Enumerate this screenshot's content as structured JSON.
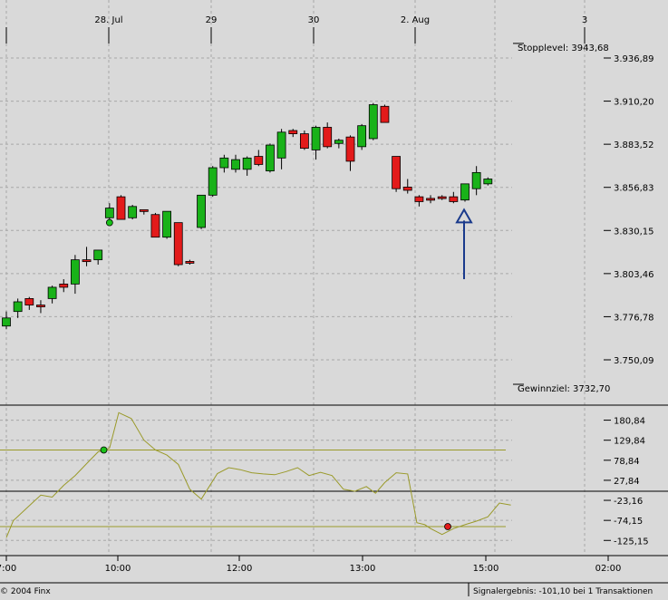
{
  "chart_data": [
    {
      "type": "candlestick",
      "top_axis_labels": [
        "28. Jul",
        "29",
        "30",
        "2. Aug",
        "3"
      ],
      "y_ticks": [
        "3.936,89",
        "3.910,20",
        "3.883,52",
        "3.856,83",
        "3.830,15",
        "3.803,46",
        "3.776,78",
        "3.750,09"
      ],
      "y_tick_values": [
        3936.89,
        3910.2,
        3883.52,
        3856.83,
        3830.15,
        3803.46,
        3776.78,
        3750.09
      ],
      "levels": [
        {
          "label": "Stopplevel: 3943,68",
          "value": 3943.68
        },
        {
          "label": "Gewinnziel: 3732,70",
          "value": 3732.7
        }
      ],
      "candles": [
        {
          "o": 3776,
          "h": 3780,
          "l": 3769,
          "c": 3771,
          "color": "green"
        },
        {
          "o": 3780,
          "h": 3788,
          "l": 3776,
          "c": 3786,
          "color": "green"
        },
        {
          "o": 3784,
          "h": 3789,
          "l": 3781,
          "c": 3788,
          "color": "red"
        },
        {
          "o": 3784,
          "h": 3787,
          "l": 3779,
          "c": 3783,
          "color": "red"
        },
        {
          "o": 3788,
          "h": 3796,
          "l": 3785,
          "c": 3795,
          "color": "green"
        },
        {
          "o": 3795,
          "h": 3800,
          "l": 3792,
          "c": 3797,
          "color": "red"
        },
        {
          "o": 3797,
          "h": 3815,
          "l": 3791,
          "c": 3812,
          "color": "green"
        },
        {
          "o": 3812,
          "h": 3820,
          "l": 3808,
          "c": 3811,
          "color": "red"
        },
        {
          "o": 3812,
          "h": 3818,
          "l": 3809,
          "c": 3818,
          "color": "green"
        },
        {
          "o": 3838,
          "h": 3847,
          "l": 3836,
          "c": 3844,
          "color": "green"
        },
        {
          "o": 3851,
          "h": 3852,
          "l": 3837,
          "c": 3837,
          "color": "red"
        },
        {
          "o": 3838,
          "h": 3846,
          "l": 3837,
          "c": 3845,
          "color": "green"
        },
        {
          "o": 3843,
          "h": 3843,
          "l": 3840,
          "c": 3842,
          "color": "red"
        },
        {
          "o": 3840,
          "h": 3841,
          "l": 3826,
          "c": 3826,
          "color": "red"
        },
        {
          "o": 3826,
          "h": 3842,
          "l": 3825,
          "c": 3842,
          "color": "green"
        },
        {
          "o": 3835,
          "h": 3835,
          "l": 3808,
          "c": 3809,
          "color": "red"
        },
        {
          "o": 3811,
          "h": 3812,
          "l": 3809,
          "c": 3810,
          "color": "red"
        },
        {
          "o": 3832,
          "h": 3852,
          "l": 3831,
          "c": 3852,
          "color": "green"
        },
        {
          "o": 3852,
          "h": 3870,
          "l": 3851,
          "c": 3869,
          "color": "green"
        },
        {
          "o": 3869,
          "h": 3877,
          "l": 3866,
          "c": 3875,
          "color": "green"
        },
        {
          "o": 3868,
          "h": 3877,
          "l": 3866,
          "c": 3874,
          "color": "green"
        },
        {
          "o": 3868,
          "h": 3876,
          "l": 3864,
          "c": 3875,
          "color": "green"
        },
        {
          "o": 3876,
          "h": 3880,
          "l": 3870,
          "c": 3871,
          "color": "red"
        },
        {
          "o": 3867,
          "h": 3884,
          "l": 3866,
          "c": 3883,
          "color": "green"
        },
        {
          "o": 3875,
          "h": 3893,
          "l": 3868,
          "c": 3891,
          "color": "green"
        },
        {
          "o": 3892,
          "h": 3893,
          "l": 3888,
          "c": 3890,
          "color": "red"
        },
        {
          "o": 3890,
          "h": 3892,
          "l": 3880,
          "c": 3881,
          "color": "red"
        },
        {
          "o": 3880,
          "h": 3895,
          "l": 3874,
          "c": 3894,
          "color": "green"
        },
        {
          "o": 3894,
          "h": 3897,
          "l": 3881,
          "c": 3882,
          "color": "red"
        },
        {
          "o": 3884,
          "h": 3887,
          "l": 3881,
          "c": 3886,
          "color": "green"
        },
        {
          "o": 3888,
          "h": 3889,
          "l": 3867,
          "c": 3873,
          "color": "red"
        },
        {
          "o": 3882,
          "h": 3896,
          "l": 3880,
          "c": 3895,
          "color": "green"
        },
        {
          "o": 3887,
          "h": 3909,
          "l": 3886,
          "c": 3908,
          "color": "green"
        },
        {
          "o": 3907,
          "h": 3908,
          "l": 3897,
          "c": 3897,
          "color": "red"
        },
        {
          "o": 3876,
          "h": 3876,
          "l": 3854,
          "c": 3856,
          "color": "red"
        },
        {
          "o": 3857,
          "h": 3862,
          "l": 3853,
          "c": 3855,
          "color": "red"
        },
        {
          "o": 3851,
          "h": 3852,
          "l": 3845,
          "c": 3848,
          "color": "red"
        },
        {
          "o": 3850,
          "h": 3852,
          "l": 3847,
          "c": 3850,
          "color": "red"
        },
        {
          "o": 3851,
          "h": 3852,
          "l": 3849,
          "c": 3850,
          "color": "red"
        },
        {
          "o": 3851,
          "h": 3854,
          "l": 3847,
          "c": 3848,
          "color": "red"
        },
        {
          "o": 3849,
          "h": 3859,
          "l": 3848,
          "c": 3859,
          "color": "green"
        },
        {
          "o": 3856,
          "h": 3870,
          "l": 3852,
          "c": 3866,
          "color": "green"
        },
        {
          "o": 3859,
          "h": 3863,
          "l": 3858,
          "c": 3862,
          "color": "green"
        }
      ],
      "entry_marker": {
        "candle": 9,
        "value": 3835,
        "color": "green"
      },
      "signal_arrow": {
        "candle": 40,
        "from": 3800,
        "to": 3843,
        "direction": "up"
      }
    },
    {
      "type": "line",
      "y_ticks": [
        "180,84",
        "129,84",
        "78,84",
        "27,84",
        "-23,16",
        "-74,15",
        "-125,15"
      ],
      "y_tick_values": [
        180.84,
        129.84,
        78.84,
        27.84,
        -23.16,
        -74.15,
        -125.15
      ],
      "x_ticks": [
        "7:00",
        "10:00",
        "12:00",
        "13:00",
        "15:00",
        "02:00"
      ],
      "reference_lines": [
        105,
        -90
      ],
      "zero_line": 0,
      "series": [
        {
          "x": [
            0,
            0.6,
            2,
            3,
            4,
            5,
            6,
            7,
            8,
            9,
            9.8,
            10.9,
            12,
            13,
            14,
            15,
            16,
            17,
            18.4,
            19.4,
            20.4,
            21.4,
            22.4,
            23.4,
            24.4,
            25.4,
            26.4,
            27.4,
            28.4,
            29.4,
            30.4,
            31.4,
            32.2,
            33,
            34,
            35,
            35.8,
            36.5,
            37,
            38,
            39,
            40,
            41,
            42,
            43,
            44
          ],
          "values": [
            -118,
            -75,
            -37,
            -10,
            -15,
            15,
            40,
            70,
            100,
            110,
            200,
            185,
            130,
            105,
            92,
            68,
            5,
            -20,
            45,
            60,
            55,
            47,
            44,
            42,
            50,
            60,
            40,
            48,
            40,
            5,
            0,
            12,
            -5,
            22,
            47,
            44,
            -80,
            -85,
            -95,
            -110,
            -95,
            -85,
            -76,
            -65,
            -30,
            -35
          ]
        }
      ],
      "markers": [
        {
          "x": 8.5,
          "value": 105,
          "color": "green"
        },
        {
          "x": 38.5,
          "value": -90,
          "color": "red"
        }
      ]
    }
  ],
  "footer": {
    "copyright": "© 2004 Finx",
    "signal": "Signalergebnis: -101,10 bei 1 Transaktionen"
  }
}
